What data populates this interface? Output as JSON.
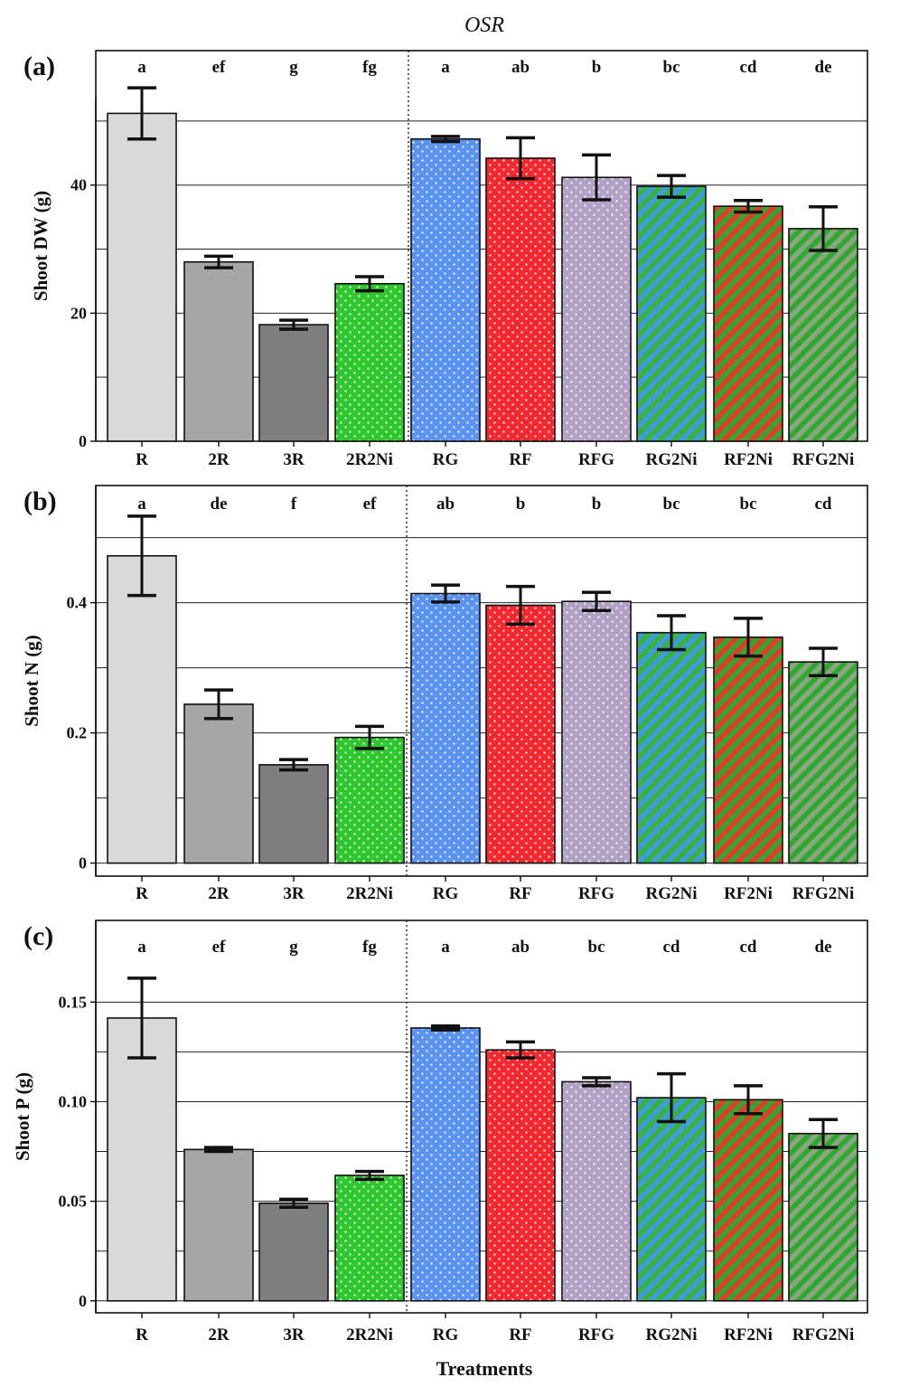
{
  "figure": {
    "title": "OSR",
    "xlabel": "Treatments"
  },
  "chart_data": [
    {
      "type": "bar",
      "panel": "(a)",
      "title": "",
      "xlabel": "",
      "ylabel": "Shoot DW (g)",
      "ylim": [
        0,
        61
      ],
      "yticks": [
        0,
        20,
        40
      ],
      "yticklabels": [
        "0",
        "20",
        "40"
      ],
      "gridlines": [
        10,
        20,
        30,
        40,
        50
      ],
      "grid": true,
      "categories": [
        "R",
        "2R",
        "3R",
        "2R2Ni",
        "RG",
        "RF",
        "RFG",
        "RG2Ni",
        "RF2Ni",
        "RFG2Ni"
      ],
      "values": [
        51.2,
        28.0,
        18.2,
        24.6,
        47.2,
        44.2,
        41.2,
        39.8,
        36.7,
        33.2
      ],
      "errors": [
        4.0,
        0.9,
        0.7,
        1.1,
        0.4,
        3.2,
        3.5,
        1.7,
        0.9,
        3.4
      ],
      "letters": [
        "a",
        "ef",
        "g",
        "fg",
        "a",
        "ab",
        "b",
        "bc",
        "cd",
        "de"
      ]
    },
    {
      "type": "bar",
      "panel": "(b)",
      "title": "",
      "xlabel": "",
      "ylabel": "Shoot N (g)",
      "ylim": [
        -0.02,
        0.58
      ],
      "yticks": [
        0,
        0.2,
        0.4
      ],
      "yticklabels": [
        "0",
        "0.2",
        "0.4"
      ],
      "gridlines": [
        0.1,
        0.2,
        0.3,
        0.4,
        0.5
      ],
      "grid": true,
      "categories": [
        "R",
        "2R",
        "3R",
        "2R2Ni",
        "RG",
        "RF",
        "RFG",
        "RG2Ni",
        "RF2Ni",
        "RFG2Ni"
      ],
      "values": [
        0.472,
        0.244,
        0.151,
        0.193,
        0.414,
        0.396,
        0.402,
        0.354,
        0.347,
        0.309
      ],
      "errors": [
        0.061,
        0.022,
        0.008,
        0.017,
        0.013,
        0.029,
        0.014,
        0.026,
        0.029,
        0.021
      ],
      "letters": [
        "a",
        "de",
        "f",
        "ef",
        "ab",
        "b",
        "b",
        "bc",
        "bc",
        "cd"
      ]
    },
    {
      "type": "bar",
      "panel": "(c)",
      "title": "",
      "xlabel": "",
      "ylabel": "Shoot P (g)",
      "ylim": [
        -0.006,
        0.191
      ],
      "yticks": [
        0,
        0.05,
        0.1,
        0.15
      ],
      "yticklabels": [
        "0",
        "0.05",
        "0.10",
        "0.15"
      ],
      "gridlines": [
        0.025,
        0.05,
        0.075,
        0.1,
        0.125,
        0.15
      ],
      "grid": true,
      "categories": [
        "R",
        "2R",
        "3R",
        "2R2Ni",
        "RG",
        "RF",
        "RFG",
        "RG2Ni",
        "RF2Ni",
        "RFG2Ni"
      ],
      "values": [
        0.142,
        0.076,
        0.049,
        0.063,
        0.137,
        0.126,
        0.11,
        0.102,
        0.101,
        0.084
      ],
      "errors": [
        0.02,
        0.001,
        0.002,
        0.002,
        0.001,
        0.004,
        0.002,
        0.012,
        0.007,
        0.007
      ],
      "letters": [
        "a",
        "ef",
        "g",
        "fg",
        "a",
        "ab",
        "bc",
        "cd",
        "cd",
        "de"
      ]
    }
  ],
  "styles": {
    "fills": [
      "#d9d9d9",
      "#a6a6a6",
      "#7f7f7f",
      "#2ec72e",
      "#5b93f2",
      "#f6282f",
      "#b3a1c6",
      "#3f9be0",
      "#e63b2b",
      "#8aa57f"
    ],
    "patterns": [
      "solid",
      "solid",
      "solid",
      "dots",
      "dots",
      "dots",
      "dots",
      "stripes",
      "stripes",
      "stripes"
    ],
    "stripe_colors": [
      "",
      "",
      "",
      "",
      "",
      "",
      "",
      "#39b239",
      "#2fa82f",
      "#2fa82f"
    ],
    "dot_color": "#ffffff",
    "bar_edge": "#111111",
    "grid_color": "#222222",
    "divider_color": "#222222"
  }
}
